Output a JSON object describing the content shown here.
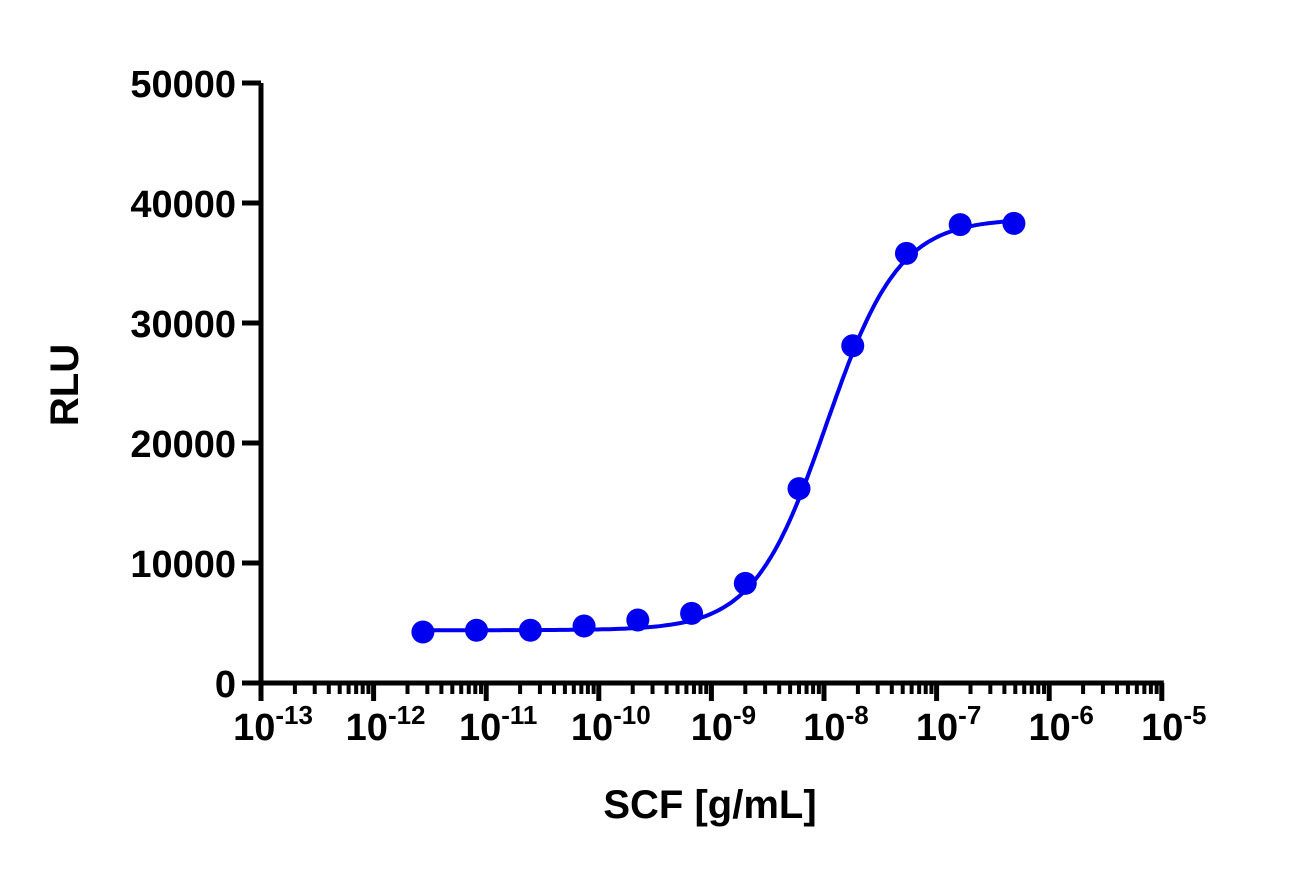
{
  "chart_data": {
    "type": "scatter",
    "xlabel": "SCF [g/mL]",
    "ylabel": "RLU",
    "xscale": "log",
    "xlim": [
      1e-13,
      1e-05
    ],
    "ylim": [
      0,
      50000
    ],
    "x_tick_labels": [
      {
        "base": "10",
        "exp": "-13"
      },
      {
        "base": "10",
        "exp": "-12"
      },
      {
        "base": "10",
        "exp": "-11"
      },
      {
        "base": "10",
        "exp": "-10"
      },
      {
        "base": "10",
        "exp": "-9"
      },
      {
        "base": "10",
        "exp": "-8"
      },
      {
        "base": "10",
        "exp": "-7"
      },
      {
        "base": "10",
        "exp": "-6"
      },
      {
        "base": "10",
        "exp": "-5"
      }
    ],
    "y_tick_labels": [
      "0",
      "10000",
      "20000",
      "30000",
      "40000",
      "50000"
    ],
    "grid": false,
    "color": "#0000f0",
    "series": [
      {
        "x": [
          2.74e-12,
          8.2e-12,
          2.47e-11,
          7.4e-11,
          2.22e-10,
          6.67e-10,
          2e-09,
          6e-09,
          1.8e-08,
          5.4e-08,
          1.62e-07,
          4.86e-07
        ],
        "y": [
          4250,
          4400,
          4400,
          4750,
          5250,
          5800,
          8300,
          16200,
          28100,
          35800,
          38200,
          38300
        ]
      }
    ],
    "fit": {
      "model": "4PL",
      "bottom": 4400,
      "top": 38700,
      "ec50": 1.05e-08,
      "hill": 1.35
    }
  }
}
